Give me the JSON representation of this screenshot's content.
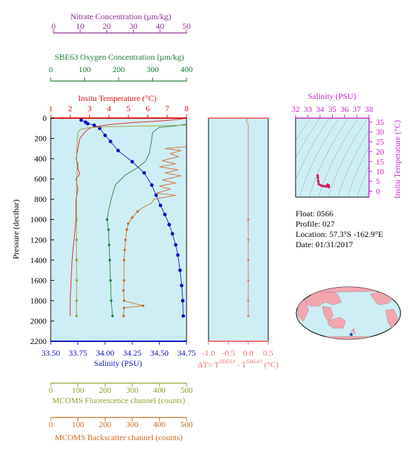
{
  "colors": {
    "panel_bg": "#cdeef5",
    "nitrate": "#8b2c8b",
    "oxygen": "#1a7a35",
    "temperature": "#e01010",
    "salinity": "#1010c0",
    "fluorescence": "#9a9a30",
    "backscatter": "#d06820",
    "delta_t": "#f07070",
    "ts_axis": "#cc22cc",
    "ts_profile": "#d81a5a",
    "land": "#f4a6b0",
    "ocean": "#cdeef5"
  },
  "axes": {
    "nitrate": {
      "label": "Nitrate Concentration (µm/kg)",
      "ticks": [
        "0",
        "10",
        "20",
        "30",
        "40",
        "50"
      ]
    },
    "oxygen": {
      "label": "SBE63 Oxygen Concentration (µm/kg)",
      "ticks": [
        "0",
        "100",
        "200",
        "300",
        "400"
      ]
    },
    "temperature": {
      "label": "Insitu Temperature (°C)",
      "ticks": [
        "1",
        "2",
        "3",
        "4",
        "5",
        "6",
        "7",
        "8"
      ]
    },
    "pressure": {
      "label": "Pressure (decibar)",
      "ticks": [
        "0",
        "200",
        "400",
        "600",
        "800",
        "1000",
        "1200",
        "1400",
        "1600",
        "1800",
        "2000",
        "2200"
      ]
    },
    "salinity": {
      "label": "Salinity (PSU)",
      "ticks": [
        "33.50",
        "33.75",
        "34.00",
        "34.25",
        "34.50",
        "34.75"
      ]
    },
    "delta_t": {
      "label_main": "ΔT= T",
      "sup1": "SBE63",
      "label_mid": " - T",
      "sup2": "SBE41",
      "label_unit": " (°C)",
      "ticks": [
        "-1.0",
        "-0.5",
        "0.0",
        "0.5"
      ]
    },
    "fluorescence": {
      "label": "MCOMS Fluorescence channel (counts)",
      "ticks": [
        "0",
        "100",
        "200",
        "300",
        "400",
        "500"
      ]
    },
    "backscatter": {
      "label": "MCOMS Backscatter channel (counts)",
      "ticks": [
        "0",
        "100",
        "200",
        "300",
        "400",
        "500"
      ]
    },
    "ts_salinity": {
      "label": "Salinity (PSU)",
      "ticks": [
        "32",
        "33",
        "34",
        "35",
        "36",
        "37",
        "38"
      ]
    },
    "ts_temperature": {
      "label": "Insitu Temperature (°C)",
      "ticks": [
        "0",
        "5",
        "10",
        "15",
        "20",
        "25",
        "30",
        "35"
      ]
    }
  },
  "info": {
    "float": "Float:  0566",
    "profile": "Profile:  027",
    "location": "Location:  57.3°S  -162.9°E",
    "date": "Date:  01/31/2017"
  },
  "chart_data": [
    {
      "type": "line",
      "title": "",
      "ylabel": "Pressure (decibar)",
      "ylim": [
        2200,
        0
      ],
      "series": [
        {
          "key": "temperature",
          "xlim": [
            1,
            8
          ],
          "points": [
            [
              8,
              0
            ],
            [
              7.5,
              15
            ],
            [
              6.5,
              30
            ],
            [
              5.2,
              45
            ],
            [
              4.2,
              60
            ],
            [
              3.4,
              80
            ],
            [
              3.0,
              100
            ],
            [
              2.8,
              130
            ],
            [
              2.5,
              200
            ],
            [
              2.4,
              300
            ],
            [
              2.3,
              400
            ],
            [
              2.4,
              450
            ],
            [
              2.4,
              500
            ],
            [
              2.5,
              550
            ],
            [
              2.3,
              600
            ],
            [
              2.4,
              700
            ],
            [
              2.3,
              800
            ],
            [
              2.3,
              900
            ],
            [
              2.3,
              1000
            ],
            [
              2.2,
              1200
            ],
            [
              2.1,
              1400
            ],
            [
              2.05,
              1600
            ],
            [
              2.0,
              1800
            ],
            [
              2.0,
              1950
            ]
          ]
        },
        {
          "key": "salinity",
          "xlim": [
            33.5,
            34.75
          ],
          "points": [
            [
              33.78,
              20
            ],
            [
              33.82,
              40
            ],
            [
              33.84,
              55
            ],
            [
              33.9,
              70
            ],
            [
              33.95,
              100
            ],
            [
              34.0,
              170
            ],
            [
              34.05,
              230
            ],
            [
              34.12,
              320
            ],
            [
              34.25,
              430
            ],
            [
              34.36,
              540
            ],
            [
              34.43,
              660
            ],
            [
              34.47,
              760
            ],
            [
              34.51,
              860
            ],
            [
              34.55,
              950
            ],
            [
              34.59,
              1050
            ],
            [
              34.62,
              1140
            ],
            [
              34.65,
              1250
            ],
            [
              34.67,
              1350
            ],
            [
              34.69,
              1500
            ],
            [
              34.705,
              1650
            ],
            [
              34.715,
              1800
            ],
            [
              34.72,
              1950
            ]
          ]
        },
        {
          "key": "oxygen",
          "xlim": [
            0,
            400
          ],
          "points": [
            [
              400,
              60
            ],
            [
              360,
              80
            ],
            [
              320,
              90
            ],
            [
              300,
              140
            ],
            [
              296,
              240
            ],
            [
              290,
              350
            ],
            [
              278,
              430
            ],
            [
              255,
              490
            ],
            [
              220,
              560
            ],
            [
              190,
              660
            ],
            [
              178,
              800
            ],
            [
              170,
              920
            ],
            [
              166,
              1000
            ],
            [
              170,
              1100
            ],
            [
              172,
              1250
            ],
            [
              174,
              1400
            ],
            [
              176,
              1600
            ],
            [
              178,
              1800
            ],
            [
              182,
              1950
            ]
          ]
        },
        {
          "key": "fluorescence",
          "xlim": [
            0,
            500
          ],
          "points": [
            [
              500,
              70
            ],
            [
              400,
              75
            ],
            [
              300,
              80
            ],
            [
              200,
              85
            ],
            [
              140,
              95
            ],
            [
              110,
              110
            ],
            [
              100,
              140
            ],
            [
              98,
              200
            ],
            [
              96,
              300
            ],
            [
              95,
              400
            ],
            [
              97,
              500
            ],
            [
              96,
              600
            ],
            [
              95,
              700
            ],
            [
              95,
              800
            ],
            [
              95,
              900
            ],
            [
              95,
              1000
            ],
            [
              95,
              1200
            ],
            [
              95,
              1400
            ],
            [
              96,
              1600
            ],
            [
              95,
              1800
            ],
            [
              95,
              1950
            ]
          ]
        },
        {
          "key": "backscatter",
          "xlim": [
            0,
            500
          ],
          "points": [
            [
              500,
              280
            ],
            [
              420,
              300
            ],
            [
              480,
              320
            ],
            [
              440,
              350
            ],
            [
              470,
              380
            ],
            [
              410,
              420
            ],
            [
              460,
              450
            ],
            [
              400,
              480
            ],
            [
              470,
              510
            ],
            [
              420,
              540
            ],
            [
              480,
              570
            ],
            [
              410,
              610
            ],
            [
              460,
              640
            ],
            [
              400,
              670
            ],
            [
              440,
              700
            ],
            [
              390,
              740
            ],
            [
              460,
              760
            ],
            [
              380,
              800
            ],
            [
              370,
              840
            ],
            [
              340,
              880
            ],
            [
              320,
              920
            ],
            [
              300,
              980
            ],
            [
              285,
              1040
            ],
            [
              280,
              1100
            ],
            [
              275,
              1200
            ],
            [
              272,
              1300
            ],
            [
              270,
              1400
            ],
            [
              270,
              1600
            ],
            [
              268,
              1700
            ],
            [
              270,
              1800
            ],
            [
              340,
              1850
            ],
            [
              270,
              1870
            ],
            [
              268,
              1950
            ]
          ]
        },
        {
          "key": "nitrate",
          "xlim": [
            0,
            50
          ],
          "points": []
        }
      ]
    },
    {
      "type": "line",
      "xlabel": "ΔT= TSBE63 - TSBE41 (°C)",
      "xlim": [
        -1.0,
        0.5
      ],
      "ylim": [
        2200,
        0
      ],
      "points": [
        [
          0.0,
          0
        ],
        [
          -0.05,
          20
        ],
        [
          -0.03,
          40
        ],
        [
          0.0,
          60
        ],
        [
          0.0,
          200
        ],
        [
          0.0,
          400
        ],
        [
          0.0,
          600
        ],
        [
          0.0,
          800
        ],
        [
          0.0,
          1000
        ],
        [
          0.0,
          1200
        ],
        [
          0.0,
          1400
        ],
        [
          0.0,
          1600
        ],
        [
          0.0,
          1800
        ],
        [
          0.0,
          1950
        ]
      ]
    },
    {
      "type": "scatter",
      "xlabel": "Salinity (PSU)",
      "ylabel": "Insitu Temperature (°C)",
      "xlim": [
        32,
        38
      ],
      "ylim": [
        -3,
        37
      ],
      "points": [
        [
          33.8,
          8
        ],
        [
          33.82,
          7
        ],
        [
          33.85,
          5
        ],
        [
          33.9,
          3.5
        ],
        [
          34.05,
          3.0
        ],
        [
          34.2,
          2.6
        ],
        [
          34.35,
          2.5
        ],
        [
          34.5,
          2.4
        ],
        [
          34.65,
          2.3
        ],
        [
          34.72,
          2.0
        ],
        [
          34.72,
          3.0
        ],
        [
          34.6,
          3.3
        ]
      ]
    }
  ]
}
